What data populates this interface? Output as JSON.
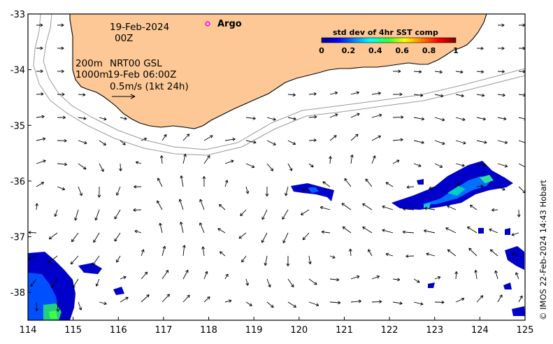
{
  "map": {
    "x_ticks": [
      "114",
      "115",
      "116",
      "117",
      "118",
      "119",
      "120",
      "121",
      "122",
      "123",
      "124",
      "125"
    ],
    "y_ticks": [
      "-33",
      "-34",
      "-35",
      "-36",
      "-37",
      "-38"
    ],
    "lon_range": [
      114,
      125
    ],
    "lat_range": [
      -38.5,
      -33
    ],
    "land_color": "#fdc895",
    "coast_color": "#000000",
    "isobath_color": "#9a9a9a"
  },
  "annotations": {
    "date": "19-Feb-2024",
    "time": "00Z",
    "isobath_200": "200m",
    "isobath_1000": "1000m",
    "product": "NRT00 GSL",
    "product_time": "19-Feb 06:00Z",
    "vector_scale": "0.5m/s (1kt 24h)"
  },
  "legend": {
    "argo_label": "Argo",
    "argo_color": "#ff00ff"
  },
  "colorbar": {
    "title": "std dev of 4hr SST comp",
    "ticks": [
      "0",
      "0.2",
      "0.4",
      "0.6",
      "0.8",
      "1"
    ],
    "colormap": "jet"
  },
  "credit": "© IMOS 22-Feb-2024 14:43 Hobart"
}
